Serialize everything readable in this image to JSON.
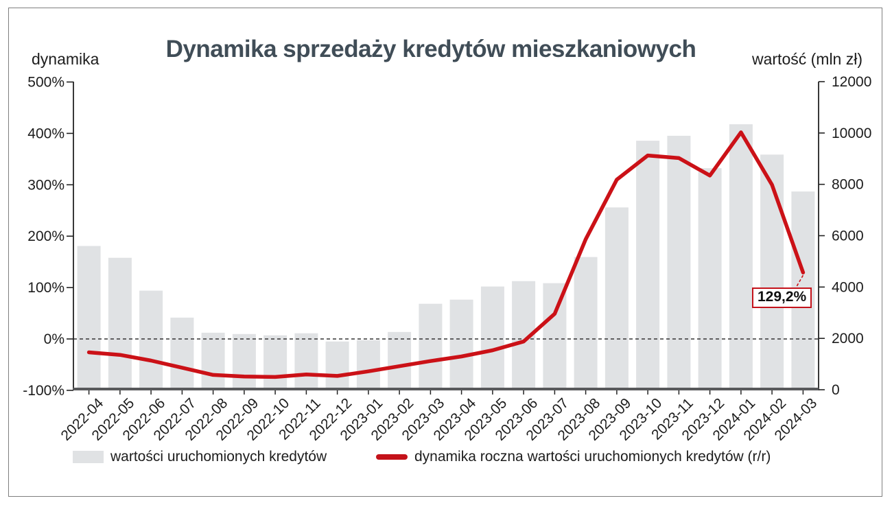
{
  "chart_data": {
    "type": "combo-bar-line",
    "title": "Dynamika sprzedaży kredytów mieszkaniowych",
    "categories": [
      "2022-04",
      "2022-05",
      "2022-06",
      "2022-07",
      "2022-08",
      "2022-09",
      "2022-10",
      "2022-11",
      "2022-12",
      "2023-01",
      "2023-02",
      "2023-03",
      "2023-04",
      "2023-05",
      "2023-06",
      "2023-07",
      "2023-08",
      "2023-09",
      "2023-10",
      "2023-11",
      "2023-12",
      "2024-01",
      "2024-02",
      "2024-03"
    ],
    "series": [
      {
        "name": "wartości uruchomionych kredytów",
        "type": "bar",
        "axis": "right",
        "color": "#e0e2e4",
        "values": [
          5600,
          5140,
          3860,
          2810,
          2220,
          2170,
          2120,
          2200,
          1880,
          1930,
          2250,
          3350,
          3510,
          4020,
          4230,
          4150,
          5170,
          7100,
          9700,
          9890,
          8630,
          10340,
          9160,
          7720
        ]
      },
      {
        "name": "dynamika roczna wartości uruchomionych kredytów (r/r)",
        "type": "line",
        "axis": "left",
        "color": "#cb1117",
        "values": [
          -26,
          -31,
          -42,
          -56,
          -70,
          -73,
          -74,
          -69,
          -72,
          -63,
          -53,
          -43,
          -34,
          -22,
          -5,
          49,
          194,
          310,
          357,
          352,
          318,
          402,
          300,
          129.2
        ]
      }
    ],
    "left_axis": {
      "title": "dynamika",
      "range": [
        -100,
        500
      ],
      "ticks": [
        {
          "label": "500%",
          "value": 500
        },
        {
          "label": "400%",
          "value": 400
        },
        {
          "label": "300%",
          "value": 300
        },
        {
          "label": "200%",
          "value": 200
        },
        {
          "label": "100%",
          "value": 100
        },
        {
          "label": "0%",
          "value": 0
        },
        {
          "label": "-100%",
          "value": -100
        }
      ]
    },
    "right_axis": {
      "title": "wartość (mln zł)",
      "range": [
        0,
        12000
      ],
      "ticks": [
        {
          "label": "12000",
          "value": 12000
        },
        {
          "label": "10000",
          "value": 10000
        },
        {
          "label": "8000",
          "value": 8000
        },
        {
          "label": "6000",
          "value": 6000
        },
        {
          "label": "4000",
          "value": 4000
        },
        {
          "label": "2000",
          "value": 2000
        },
        {
          "label": "0",
          "value": 0
        }
      ]
    },
    "zero_line": true,
    "grid": false,
    "legend_position": "bottom",
    "annotation": {
      "text": "129,2%",
      "value": 129.2,
      "category": "2024-03"
    }
  }
}
